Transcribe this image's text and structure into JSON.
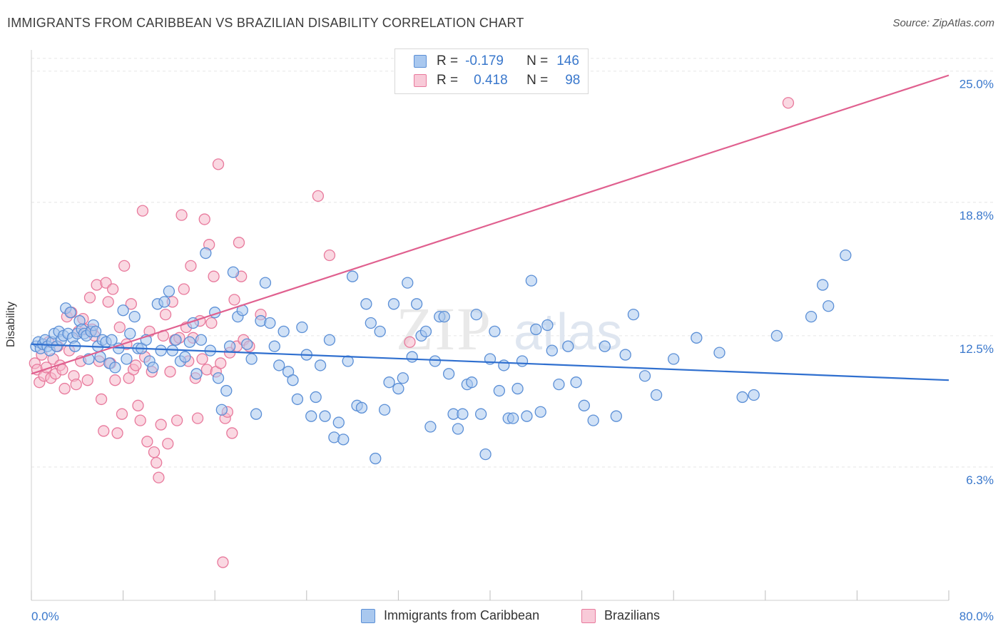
{
  "title": "IMMIGRANTS FROM CARIBBEAN VS BRAZILIAN DISABILITY CORRELATION CHART",
  "source": "Source: ZipAtlas.com",
  "watermark": {
    "zip": "ZIP",
    "atlas": "atlas"
  },
  "colors": {
    "blue_fill": "#a9c8ef",
    "blue_stroke": "#5b8fd6",
    "blue_line": "#2f6fcf",
    "pink_fill": "#f5b8cb",
    "pink_stroke": "#e8799c",
    "pink_line": "#e0608f",
    "axis_text": "#3a78cc",
    "grid": "#e6e6e6"
  },
  "legend": {
    "rows": [
      {
        "r_label": "R =",
        "r_value": "-0.179",
        "n_label": "N =",
        "n_value": "146"
      },
      {
        "r_label": "R =",
        "r_value": "0.418",
        "n_label": "N =",
        "n_value": "98"
      }
    ]
  },
  "bottom_legend": {
    "series1": "Immigrants from Caribbean",
    "series2": "Brazilians"
  },
  "chart_data": {
    "type": "scatter",
    "ylabel": "Disability",
    "xlabel": "",
    "xlim": [
      0,
      80
    ],
    "ylim": [
      0,
      26
    ],
    "x_tick_labels": [
      "0.0%",
      "80.0%"
    ],
    "y_ticks": [
      6.3,
      12.5,
      18.8,
      25.0
    ],
    "y_tick_labels": [
      "6.3%",
      "12.5%",
      "18.8%",
      "25.0%"
    ],
    "grid": true,
    "legend_position": "top-center",
    "series": [
      {
        "name": "Immigrants from Caribbean",
        "color": "#5b8fd6",
        "trend": {
          "x": [
            0,
            80
          ],
          "y": [
            12.1,
            10.4
          ]
        },
        "points": [
          [
            0.4,
            12.0
          ],
          [
            0.6,
            12.2
          ],
          [
            0.8,
            11.9
          ],
          [
            1.0,
            12.1
          ],
          [
            1.2,
            12.3
          ],
          [
            1.4,
            12.0
          ],
          [
            1.6,
            11.8
          ],
          [
            1.8,
            12.2
          ],
          [
            2.0,
            12.6
          ],
          [
            2.2,
            12.0
          ],
          [
            2.4,
            12.7
          ],
          [
            2.6,
            12.3
          ],
          [
            2.8,
            12.5
          ],
          [
            3.0,
            13.8
          ],
          [
            3.2,
            12.6
          ],
          [
            3.4,
            13.6
          ],
          [
            3.6,
            12.4
          ],
          [
            3.8,
            12.0
          ],
          [
            4.0,
            12.6
          ],
          [
            4.2,
            13.2
          ],
          [
            4.4,
            12.8
          ],
          [
            4.6,
            12.6
          ],
          [
            4.8,
            12.5
          ],
          [
            5.0,
            11.4
          ],
          [
            5.2,
            12.7
          ],
          [
            5.4,
            13.0
          ],
          [
            5.6,
            12.7
          ],
          [
            5.8,
            12.0
          ],
          [
            6.0,
            11.5
          ],
          [
            6.2,
            12.3
          ],
          [
            6.5,
            12.2
          ],
          [
            6.8,
            11.2
          ],
          [
            7.0,
            12.3
          ],
          [
            7.3,
            11.0
          ],
          [
            7.6,
            11.9
          ],
          [
            8.0,
            13.7
          ],
          [
            8.3,
            11.4
          ],
          [
            8.6,
            12.6
          ],
          [
            9.0,
            13.4
          ],
          [
            9.3,
            11.9
          ],
          [
            9.6,
            11.9
          ],
          [
            10.0,
            12.3
          ],
          [
            10.3,
            11.3
          ],
          [
            10.6,
            11.0
          ],
          [
            11.0,
            14.0
          ],
          [
            11.3,
            11.8
          ],
          [
            11.6,
            14.1
          ],
          [
            12.0,
            14.6
          ],
          [
            12.3,
            11.8
          ],
          [
            12.6,
            12.3
          ],
          [
            13.0,
            11.3
          ],
          [
            13.4,
            11.5
          ],
          [
            13.8,
            12.2
          ],
          [
            14.1,
            13.1
          ],
          [
            14.4,
            10.7
          ],
          [
            14.8,
            12.3
          ],
          [
            15.2,
            16.4
          ],
          [
            15.6,
            11.8
          ],
          [
            16.0,
            13.6
          ],
          [
            16.3,
            10.5
          ],
          [
            16.6,
            9.0
          ],
          [
            17.0,
            9.9
          ],
          [
            17.3,
            12.0
          ],
          [
            17.6,
            15.5
          ],
          [
            18.0,
            13.4
          ],
          [
            18.4,
            13.7
          ],
          [
            18.8,
            12.1
          ],
          [
            19.2,
            11.4
          ],
          [
            19.6,
            8.8
          ],
          [
            20.0,
            13.2
          ],
          [
            20.4,
            15.0
          ],
          [
            20.8,
            13.1
          ],
          [
            21.2,
            12.0
          ],
          [
            21.6,
            11.1
          ],
          [
            22.0,
            12.7
          ],
          [
            22.4,
            10.8
          ],
          [
            22.8,
            10.4
          ],
          [
            23.2,
            9.5
          ],
          [
            23.6,
            12.9
          ],
          [
            24.0,
            11.6
          ],
          [
            24.4,
            8.7
          ],
          [
            24.8,
            9.6
          ],
          [
            25.2,
            11.1
          ],
          [
            25.6,
            8.7
          ],
          [
            26.0,
            12.3
          ],
          [
            26.4,
            7.7
          ],
          [
            26.8,
            8.4
          ],
          [
            27.2,
            7.6
          ],
          [
            27.6,
            11.3
          ],
          [
            28.0,
            15.3
          ],
          [
            28.4,
            9.2
          ],
          [
            28.8,
            9.1
          ],
          [
            29.2,
            14.0
          ],
          [
            29.6,
            13.1
          ],
          [
            30.0,
            6.7
          ],
          [
            30.4,
            12.7
          ],
          [
            30.8,
            9.0
          ],
          [
            31.2,
            10.3
          ],
          [
            31.6,
            14.0
          ],
          [
            32.0,
            10.0
          ],
          [
            32.4,
            10.5
          ],
          [
            32.8,
            15.0
          ],
          [
            33.2,
            11.5
          ],
          [
            33.6,
            14.0
          ],
          [
            34.0,
            12.5
          ],
          [
            34.4,
            12.7
          ],
          [
            34.8,
            8.2
          ],
          [
            35.2,
            11.3
          ],
          [
            35.6,
            13.4
          ],
          [
            36.0,
            13.4
          ],
          [
            36.4,
            10.7
          ],
          [
            36.8,
            8.8
          ],
          [
            37.2,
            8.1
          ],
          [
            37.6,
            8.8
          ],
          [
            38.0,
            10.2
          ],
          [
            38.4,
            10.3
          ],
          [
            38.8,
            13.5
          ],
          [
            39.2,
            8.8
          ],
          [
            39.6,
            6.9
          ],
          [
            40.0,
            11.4
          ],
          [
            40.4,
            12.7
          ],
          [
            40.8,
            9.9
          ],
          [
            41.2,
            11.1
          ],
          [
            41.6,
            8.6
          ],
          [
            42.0,
            8.6
          ],
          [
            42.4,
            10.0
          ],
          [
            42.8,
            11.3
          ],
          [
            43.2,
            8.7
          ],
          [
            43.6,
            15.1
          ],
          [
            44.0,
            12.8
          ],
          [
            44.4,
            8.9
          ],
          [
            45.0,
            13.0
          ],
          [
            45.4,
            11.8
          ],
          [
            46.0,
            10.2
          ],
          [
            46.8,
            12.0
          ],
          [
            47.5,
            10.3
          ],
          [
            48.2,
            9.2
          ],
          [
            49.0,
            8.5
          ],
          [
            50.0,
            12.0
          ],
          [
            51.0,
            8.7
          ],
          [
            51.8,
            11.6
          ],
          [
            52.5,
            13.5
          ],
          [
            53.5,
            10.6
          ],
          [
            54.5,
            9.7
          ],
          [
            56.0,
            11.4
          ],
          [
            58.0,
            12.4
          ],
          [
            60.0,
            11.7
          ],
          [
            62.0,
            9.6
          ],
          [
            63.0,
            9.7
          ],
          [
            65.0,
            12.5
          ],
          [
            68.0,
            13.4
          ],
          [
            69.0,
            14.9
          ],
          [
            69.5,
            13.9
          ],
          [
            71.0,
            16.3
          ]
        ]
      },
      {
        "name": "Brazilians",
        "color": "#e8799c",
        "trend": {
          "x": [
            0,
            80
          ],
          "y": [
            10.7,
            24.8
          ]
        },
        "points": [
          [
            0.3,
            11.2
          ],
          [
            0.5,
            10.9
          ],
          [
            0.7,
            10.3
          ],
          [
            0.9,
            11.6
          ],
          [
            1.1,
            10.6
          ],
          [
            1.3,
            11.0
          ],
          [
            1.5,
            12.2
          ],
          [
            1.7,
            10.5
          ],
          [
            1.9,
            11.4
          ],
          [
            2.1,
            10.7
          ],
          [
            2.3,
            12.0
          ],
          [
            2.5,
            11.1
          ],
          [
            2.7,
            10.9
          ],
          [
            2.9,
            10.0
          ],
          [
            3.1,
            13.4
          ],
          [
            3.3,
            11.8
          ],
          [
            3.5,
            13.6
          ],
          [
            3.7,
            10.6
          ],
          [
            3.9,
            10.2
          ],
          [
            4.1,
            12.7
          ],
          [
            4.3,
            11.3
          ],
          [
            4.5,
            13.3
          ],
          [
            4.7,
            12.8
          ],
          [
            4.9,
            10.4
          ],
          [
            5.1,
            14.3
          ],
          [
            5.3,
            12.8
          ],
          [
            5.5,
            12.5
          ],
          [
            5.7,
            14.9
          ],
          [
            5.9,
            11.3
          ],
          [
            6.1,
            9.5
          ],
          [
            6.3,
            8.0
          ],
          [
            6.5,
            15.0
          ],
          [
            6.7,
            14.1
          ],
          [
            6.9,
            11.2
          ],
          [
            7.1,
            14.7
          ],
          [
            7.3,
            10.4
          ],
          [
            7.5,
            7.9
          ],
          [
            7.7,
            12.9
          ],
          [
            7.9,
            8.8
          ],
          [
            8.1,
            15.8
          ],
          [
            8.3,
            12.1
          ],
          [
            8.5,
            10.5
          ],
          [
            8.7,
            14.0
          ],
          [
            8.9,
            10.9
          ],
          [
            9.1,
            11.1
          ],
          [
            9.3,
            9.2
          ],
          [
            9.5,
            8.5
          ],
          [
            9.7,
            18.4
          ],
          [
            9.9,
            11.5
          ],
          [
            10.1,
            7.5
          ],
          [
            10.3,
            12.7
          ],
          [
            10.5,
            10.8
          ],
          [
            10.7,
            7.0
          ],
          [
            10.9,
            6.5
          ],
          [
            11.1,
            5.8
          ],
          [
            11.3,
            8.3
          ],
          [
            11.5,
            12.5
          ],
          [
            11.7,
            13.5
          ],
          [
            11.9,
            7.4
          ],
          [
            12.1,
            10.8
          ],
          [
            12.3,
            14.1
          ],
          [
            12.5,
            12.3
          ],
          [
            12.7,
            8.5
          ],
          [
            12.9,
            12.4
          ],
          [
            13.1,
            18.2
          ],
          [
            13.3,
            14.7
          ],
          [
            13.5,
            12.9
          ],
          [
            13.7,
            11.3
          ],
          [
            13.9,
            15.8
          ],
          [
            14.1,
            12.4
          ],
          [
            14.3,
            10.5
          ],
          [
            14.5,
            8.6
          ],
          [
            14.7,
            13.2
          ],
          [
            14.9,
            11.4
          ],
          [
            15.1,
            18.0
          ],
          [
            15.3,
            10.9
          ],
          [
            15.5,
            16.8
          ],
          [
            15.7,
            13.1
          ],
          [
            15.9,
            15.3
          ],
          [
            16.1,
            10.8
          ],
          [
            16.3,
            20.6
          ],
          [
            16.5,
            11.2
          ],
          [
            16.7,
            1.8
          ],
          [
            16.9,
            8.6
          ],
          [
            17.1,
            8.9
          ],
          [
            17.3,
            11.7
          ],
          [
            17.5,
            7.9
          ],
          [
            17.7,
            14.2
          ],
          [
            17.9,
            12.0
          ],
          [
            18.1,
            16.9
          ],
          [
            18.3,
            15.3
          ],
          [
            18.5,
            12.3
          ],
          [
            19.0,
            12.0
          ],
          [
            20.0,
            13.5
          ],
          [
            25.0,
            19.1
          ],
          [
            26.0,
            16.3
          ],
          [
            66.0,
            23.5
          ],
          [
            33.0,
            12.2
          ]
        ]
      }
    ]
  }
}
